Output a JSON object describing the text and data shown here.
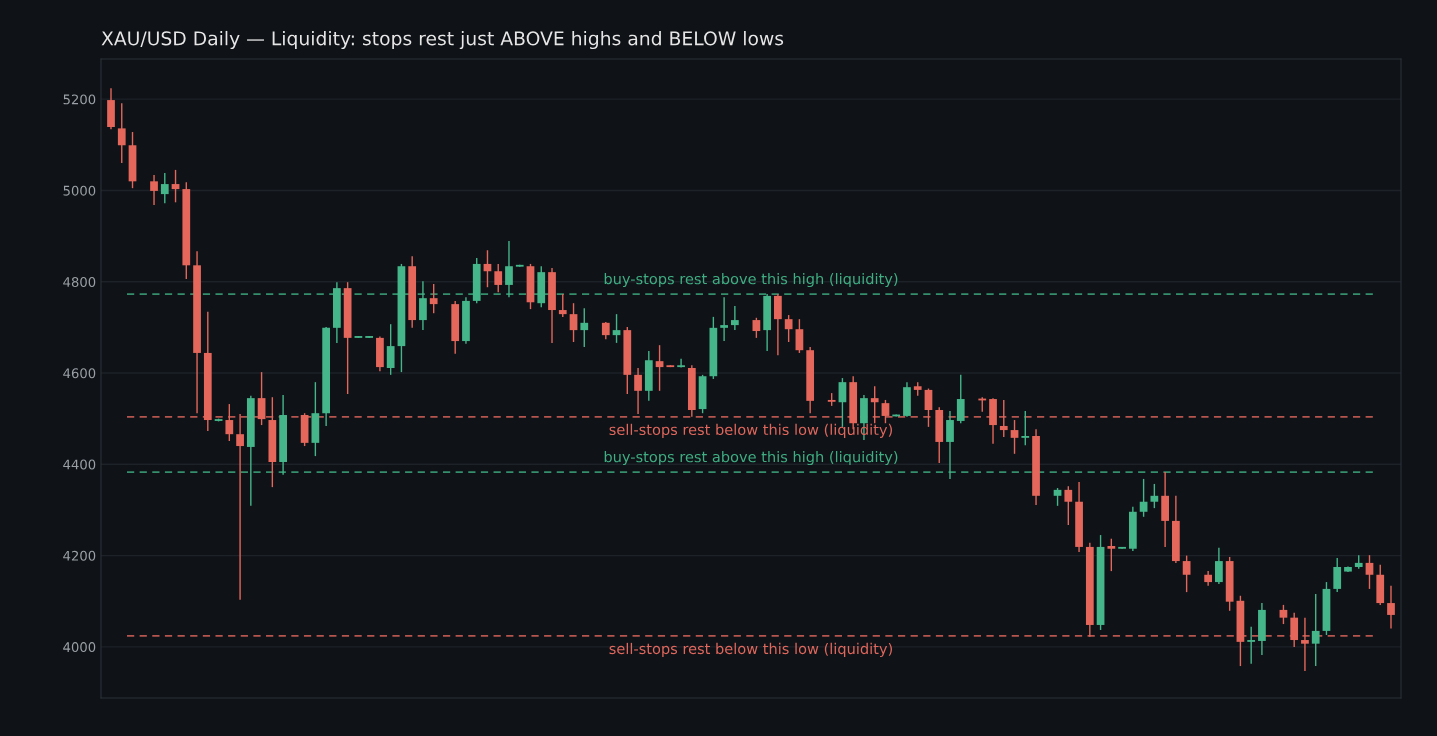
{
  "chart_data": {
    "type": "candlestick",
    "title": "XAU/USD Daily — Liquidity: stops rest just ABOVE highs and BELOW lows",
    "categories": [
      null,
      null,
      null,
      null,
      null,
      null,
      null,
      null,
      null,
      null,
      null,
      null,
      null,
      null,
      null,
      null,
      null,
      null,
      null,
      null,
      null,
      null,
      null,
      null,
      null,
      null,
      null,
      null,
      null,
      null,
      null,
      null,
      null,
      null,
      null,
      null,
      null,
      null,
      null,
      null,
      null,
      null,
      null,
      null,
      null,
      null,
      null,
      null,
      null,
      null,
      null,
      null,
      null,
      null,
      null,
      null,
      null,
      null,
      null,
      null,
      null,
      null,
      null,
      null,
      null,
      null,
      null,
      null,
      null,
      null,
      null,
      null,
      null,
      null,
      null,
      null,
      null,
      null,
      null,
      null,
      null,
      null,
      null,
      null,
      null,
      null,
      null,
      null,
      null,
      null,
      null,
      null,
      null,
      null,
      null,
      null,
      null,
      null,
      null,
      null,
      null,
      null,
      null,
      null,
      null,
      null,
      null,
      null,
      null,
      null,
      null,
      null,
      null,
      null,
      null,
      null,
      null,
      null,
      null,
      null
    ],
    "ohlc": [
      [
        5198,
        5224,
        5134,
        5139
      ],
      [
        5136,
        5191,
        5060,
        5099
      ],
      [
        5099,
        5128,
        5005,
        5020
      ],
      null,
      [
        5020,
        5034,
        4968,
        4999
      ],
      [
        4992,
        5038,
        4972,
        5014
      ],
      [
        5014,
        5045,
        4974,
        5003
      ],
      [
        5003,
        5018,
        4806,
        4836
      ],
      [
        4836,
        4867,
        4512,
        4644
      ],
      [
        4644,
        4734,
        4473,
        4497
      ],
      [
        4495,
        4500,
        4494,
        4499
      ],
      [
        4497,
        4532,
        4451,
        4466
      ],
      [
        4466,
        4510,
        4103,
        4440
      ],
      [
        4438,
        4550,
        4309,
        4545
      ],
      [
        4545,
        4602,
        4486,
        4499
      ],
      [
        4497,
        4547,
        4350,
        4405
      ],
      [
        4405,
        4552,
        4377,
        4508
      ],
      null,
      [
        4508,
        4512,
        4440,
        4447
      ],
      [
        4447,
        4580,
        4418,
        4512
      ],
      [
        4512,
        4701,
        4484,
        4699
      ],
      [
        4699,
        4799,
        4666,
        4786
      ],
      [
        4786,
        4799,
        4554,
        4677
      ],
      [
        4677,
        4681,
        4677,
        4681
      ],
      [
        4677,
        4681,
        4677,
        4681
      ],
      [
        4677,
        4680,
        4604,
        4613
      ],
      [
        4611,
        4707,
        4596,
        4659
      ],
      [
        4659,
        4839,
        4602,
        4834
      ],
      [
        4834,
        4856,
        4699,
        4716
      ],
      [
        4716,
        4801,
        4694,
        4764
      ],
      [
        4764,
        4795,
        4731,
        4751
      ],
      null,
      [
        4751,
        4758,
        4642,
        4670
      ],
      [
        4670,
        4766,
        4664,
        4758
      ],
      [
        4758,
        4852,
        4753,
        4839
      ],
      [
        4839,
        4869,
        4788,
        4823
      ],
      [
        4823,
        4839,
        4777,
        4793
      ],
      [
        4793,
        4889,
        4766,
        4834
      ],
      [
        4833,
        4837,
        4833,
        4837
      ],
      [
        4834,
        4839,
        4740,
        4755
      ],
      [
        4753,
        4834,
        4744,
        4821
      ],
      [
        4821,
        4830,
        4666,
        4738
      ],
      [
        4738,
        4773,
        4723,
        4729
      ],
      [
        4729,
        4753,
        4668,
        4694
      ],
      [
        4694,
        4742,
        4657,
        4710
      ],
      null,
      [
        4710,
        4712,
        4674,
        4683
      ],
      [
        4683,
        4729,
        4666,
        4694
      ],
      [
        4694,
        4701,
        4554,
        4596
      ],
      [
        4596,
        4611,
        4510,
        4561
      ],
      [
        4561,
        4648,
        4539,
        4628
      ],
      [
        4626,
        4661,
        4561,
        4613
      ],
      [
        4617,
        4617,
        4613,
        4613
      ],
      [
        4613,
        4631,
        4612,
        4617
      ],
      [
        4611,
        4617,
        4504,
        4519
      ],
      [
        4521,
        4596,
        4512,
        4593
      ],
      [
        4593,
        4723,
        4587,
        4699
      ],
      [
        4699,
        4766,
        4670,
        4705
      ],
      [
        4705,
        4747,
        4694,
        4716
      ],
      null,
      [
        4716,
        4721,
        4677,
        4692
      ],
      [
        4694,
        4773,
        4648,
        4769
      ],
      [
        4769,
        4773,
        4639,
        4718
      ],
      [
        4718,
        4727,
        4668,
        4696
      ],
      [
        4696,
        4718,
        4644,
        4650
      ],
      [
        4650,
        4657,
        4512,
        4539
      ],
      null,
      [
        4541,
        4556,
        4528,
        4537
      ],
      [
        4536,
        4589,
        4482,
        4580
      ],
      [
        4580,
        4593,
        4477,
        4490
      ],
      [
        4490,
        4552,
        4453,
        4545
      ],
      [
        4545,
        4571,
        4490,
        4536
      ],
      [
        4534,
        4541,
        4490,
        4506
      ],
      [
        4505,
        4509,
        4505,
        4509
      ],
      [
        4506,
        4580,
        4504,
        4569
      ],
      [
        4571,
        4580,
        4550,
        4563
      ],
      [
        4563,
        4566,
        4482,
        4519
      ],
      [
        4519,
        4525,
        4403,
        4449
      ],
      [
        4449,
        4517,
        4368,
        4497
      ],
      [
        4495,
        4596,
        4490,
        4543
      ],
      null,
      [
        4544,
        4547,
        4515,
        4540
      ],
      [
        4543,
        4545,
        4445,
        4486
      ],
      [
        4484,
        4541,
        4460,
        4475
      ],
      [
        4475,
        4497,
        4423,
        4458
      ],
      [
        4458,
        4517,
        4442,
        4462
      ],
      [
        4462,
        4477,
        4311,
        4331
      ],
      null,
      [
        4331,
        4348,
        4309,
        4344
      ],
      [
        4344,
        4352,
        4267,
        4318
      ],
      [
        4318,
        4361,
        4208,
        4219
      ],
      [
        4219,
        4228,
        4022,
        4048
      ],
      [
        4048,
        4245,
        4037,
        4219
      ],
      [
        4221,
        4237,
        4166,
        4215
      ],
      [
        4215,
        4219,
        4215,
        4219
      ],
      [
        4215,
        4307,
        4210,
        4296
      ],
      [
        4296,
        4368,
        4285,
        4318
      ],
      [
        4318,
        4357,
        4304,
        4331
      ],
      [
        4331,
        4383,
        4219,
        4276
      ],
      [
        4276,
        4331,
        4184,
        4188
      ],
      [
        4188,
        4200,
        4120,
        4158
      ],
      null,
      [
        4158,
        4166,
        4134,
        4142
      ],
      [
        4142,
        4217,
        4138,
        4188
      ],
      [
        4188,
        4197,
        4079,
        4099
      ],
      [
        4101,
        4112,
        3958,
        4011
      ],
      [
        4011,
        4044,
        3963,
        4015
      ],
      [
        4013,
        4096,
        3982,
        4081
      ],
      null,
      [
        4081,
        4092,
        4050,
        4064
      ],
      [
        4064,
        4075,
        4000,
        4015
      ],
      [
        4015,
        4064,
        3947,
        4007
      ],
      [
        4007,
        4116,
        3958,
        4035
      ],
      [
        4035,
        4142,
        4026,
        4127
      ],
      [
        4127,
        4195,
        4120,
        4175
      ],
      [
        4165,
        4176,
        4164,
        4175
      ],
      [
        4175,
        4201,
        4171,
        4184
      ],
      [
        4184,
        4201,
        4127,
        4158
      ],
      [
        4158,
        4180,
        4092,
        4096
      ],
      [
        4096,
        4134,
        4040,
        4070
      ]
    ],
    "colors": [
      "#e5675b",
      "#e5675b",
      "#e5675b",
      null,
      "#e5675b",
      "#45b68a",
      "#e5675b",
      "#e5675b",
      "#e5675b",
      "#e5675b",
      "#45b68a",
      "#e5675b",
      "#e5675b",
      "#45b68a",
      "#e5675b",
      "#e5675b",
      "#45b68a",
      null,
      "#e5675b",
      "#45b68a",
      "#45b68a",
      "#45b68a",
      "#e5675b",
      "#45b68a",
      "#45b68a",
      "#e5675b",
      "#45b68a",
      "#45b68a",
      "#e5675b",
      "#45b68a",
      "#e5675b",
      null,
      "#e5675b",
      "#45b68a",
      "#45b68a",
      "#e5675b",
      "#e5675b",
      "#45b68a",
      "#45b68a",
      "#e5675b",
      "#45b68a",
      "#e5675b",
      "#e5675b",
      "#e5675b",
      "#45b68a",
      null,
      "#e5675b",
      "#45b68a",
      "#e5675b",
      "#e5675b",
      "#45b68a",
      "#e5675b",
      "#e5675b",
      "#45b68a",
      "#e5675b",
      "#45b68a",
      "#45b68a",
      "#45b68a",
      "#45b68a",
      null,
      "#e5675b",
      "#45b68a",
      "#e5675b",
      "#e5675b",
      "#e5675b",
      "#e5675b",
      null,
      "#e5675b",
      "#45b68a",
      "#e5675b",
      "#45b68a",
      "#e5675b",
      "#e5675b",
      "#45b68a",
      "#45b68a",
      "#e5675b",
      "#e5675b",
      "#e5675b",
      "#45b68a",
      "#45b68a",
      null,
      "#e5675b",
      "#e5675b",
      "#e5675b",
      "#e5675b",
      "#45b68a",
      "#e5675b",
      null,
      "#45b68a",
      "#e5675b",
      "#e5675b",
      "#e5675b",
      "#45b68a",
      "#e5675b",
      "#45b68a",
      "#45b68a",
      "#45b68a",
      "#45b68a",
      "#e5675b",
      "#e5675b",
      "#e5675b",
      null,
      "#e5675b",
      "#45b68a",
      "#e5675b",
      "#e5675b",
      "#45b68a",
      "#45b68a",
      null,
      "#e5675b",
      "#e5675b",
      "#e5675b",
      "#45b68a",
      "#45b68a",
      "#45b68a",
      "#45b68a",
      "#45b68a",
      "#e5675b",
      "#e5675b",
      "#e5675b"
    ],
    "ylim": [
      3888,
      5288
    ],
    "yticks": [
      4000,
      4200,
      4400,
      4600,
      4800,
      5000,
      5200
    ],
    "grid": "y",
    "tick_labels": "y",
    "ref_lines": [
      {
        "axis": "y",
        "value": 4773,
        "label": "buy-stops rest above this high (liquidity)",
        "color": "#3fae82",
        "line_style": "dashed"
      },
      {
        "axis": "y",
        "value": 4504,
        "label": "sell-stops rest below this low (liquidity)",
        "color": "#e0675c",
        "line_style": "dashed"
      },
      {
        "axis": "y",
        "value": 4383,
        "label": "buy-stops rest above this high (liquidity)",
        "color": "#3fae82",
        "line_style": "dashed"
      },
      {
        "axis": "y",
        "value": 4024,
        "label": "sell-stops rest below this low (liquidity)",
        "color": "#e0675c",
        "line_style": "dashed"
      }
    ]
  }
}
